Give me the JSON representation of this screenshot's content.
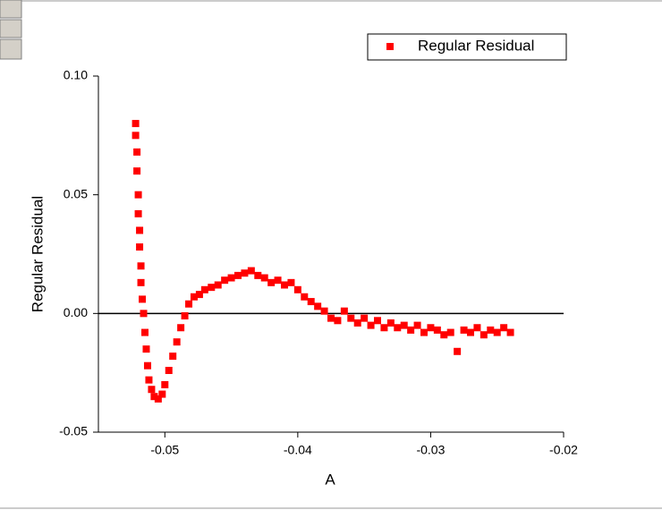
{
  "chart_data": {
    "type": "scatter",
    "xlabel": "A",
    "ylabel": "Regular Residual",
    "xlim": [
      -0.055,
      -0.02
    ],
    "ylim": [
      -0.05,
      0.1
    ],
    "xticks": [
      -0.05,
      -0.04,
      -0.03,
      -0.02
    ],
    "yticks": [
      {
        "value": 0.1,
        "label": "0.10"
      },
      0.05,
      {
        "value": 0,
        "label": "0.00"
      },
      -0.05
    ],
    "reference_line": 0,
    "legend": "top-right",
    "series": [
      {
        "name": "Regular Residual",
        "color": "#ff0000",
        "x": [
          -0.0522,
          -0.0522,
          -0.0521,
          -0.0521,
          -0.052,
          -0.052,
          -0.0519,
          -0.0519,
          -0.0518,
          -0.0518,
          -0.0517,
          -0.0516,
          -0.0515,
          -0.0514,
          -0.0513,
          -0.0512,
          -0.051,
          -0.0508,
          -0.0505,
          -0.0502,
          -0.05,
          -0.0497,
          -0.0494,
          -0.0491,
          -0.0488,
          -0.0485,
          -0.0482,
          -0.0478,
          -0.0474,
          -0.047,
          -0.0465,
          -0.046,
          -0.0455,
          -0.045,
          -0.0445,
          -0.044,
          -0.0435,
          -0.043,
          -0.0425,
          -0.042,
          -0.0415,
          -0.041,
          -0.0405,
          -0.04,
          -0.0395,
          -0.039,
          -0.0385,
          -0.038,
          -0.0375,
          -0.037,
          -0.0365,
          -0.036,
          -0.0355,
          -0.035,
          -0.0345,
          -0.034,
          -0.0335,
          -0.033,
          -0.0325,
          -0.032,
          -0.0315,
          -0.031,
          -0.0305,
          -0.03,
          -0.0295,
          -0.029,
          -0.0285,
          -0.028,
          -0.0275,
          -0.027,
          -0.0265,
          -0.026,
          -0.0255,
          -0.025,
          -0.0245,
          -0.024
        ],
        "y": [
          0.08,
          0.075,
          0.068,
          0.06,
          0.05,
          0.042,
          0.035,
          0.028,
          0.02,
          0.013,
          0.006,
          0,
          -0.008,
          -0.015,
          -0.022,
          -0.028,
          -0.032,
          -0.035,
          -0.036,
          -0.034,
          -0.03,
          -0.024,
          -0.018,
          -0.012,
          -0.006,
          -0.001,
          0.004,
          0.007,
          0.008,
          0.01,
          0.011,
          0.012,
          0.014,
          0.015,
          0.016,
          0.017,
          0.018,
          0.016,
          0.015,
          0.013,
          0.014,
          0.012,
          0.013,
          0.01,
          0.007,
          0.005,
          0.003,
          0.001,
          -0.002,
          -0.003,
          0.001,
          -0.002,
          -0.004,
          -0.002,
          -0.005,
          -0.003,
          -0.006,
          -0.004,
          -0.006,
          -0.005,
          -0.007,
          -0.005,
          -0.008,
          -0.006,
          -0.007,
          -0.009,
          -0.008,
          -0.016,
          -0.007,
          -0.008,
          -0.006,
          -0.009,
          -0.007,
          -0.008,
          -0.006,
          -0.008
        ]
      }
    ]
  }
}
